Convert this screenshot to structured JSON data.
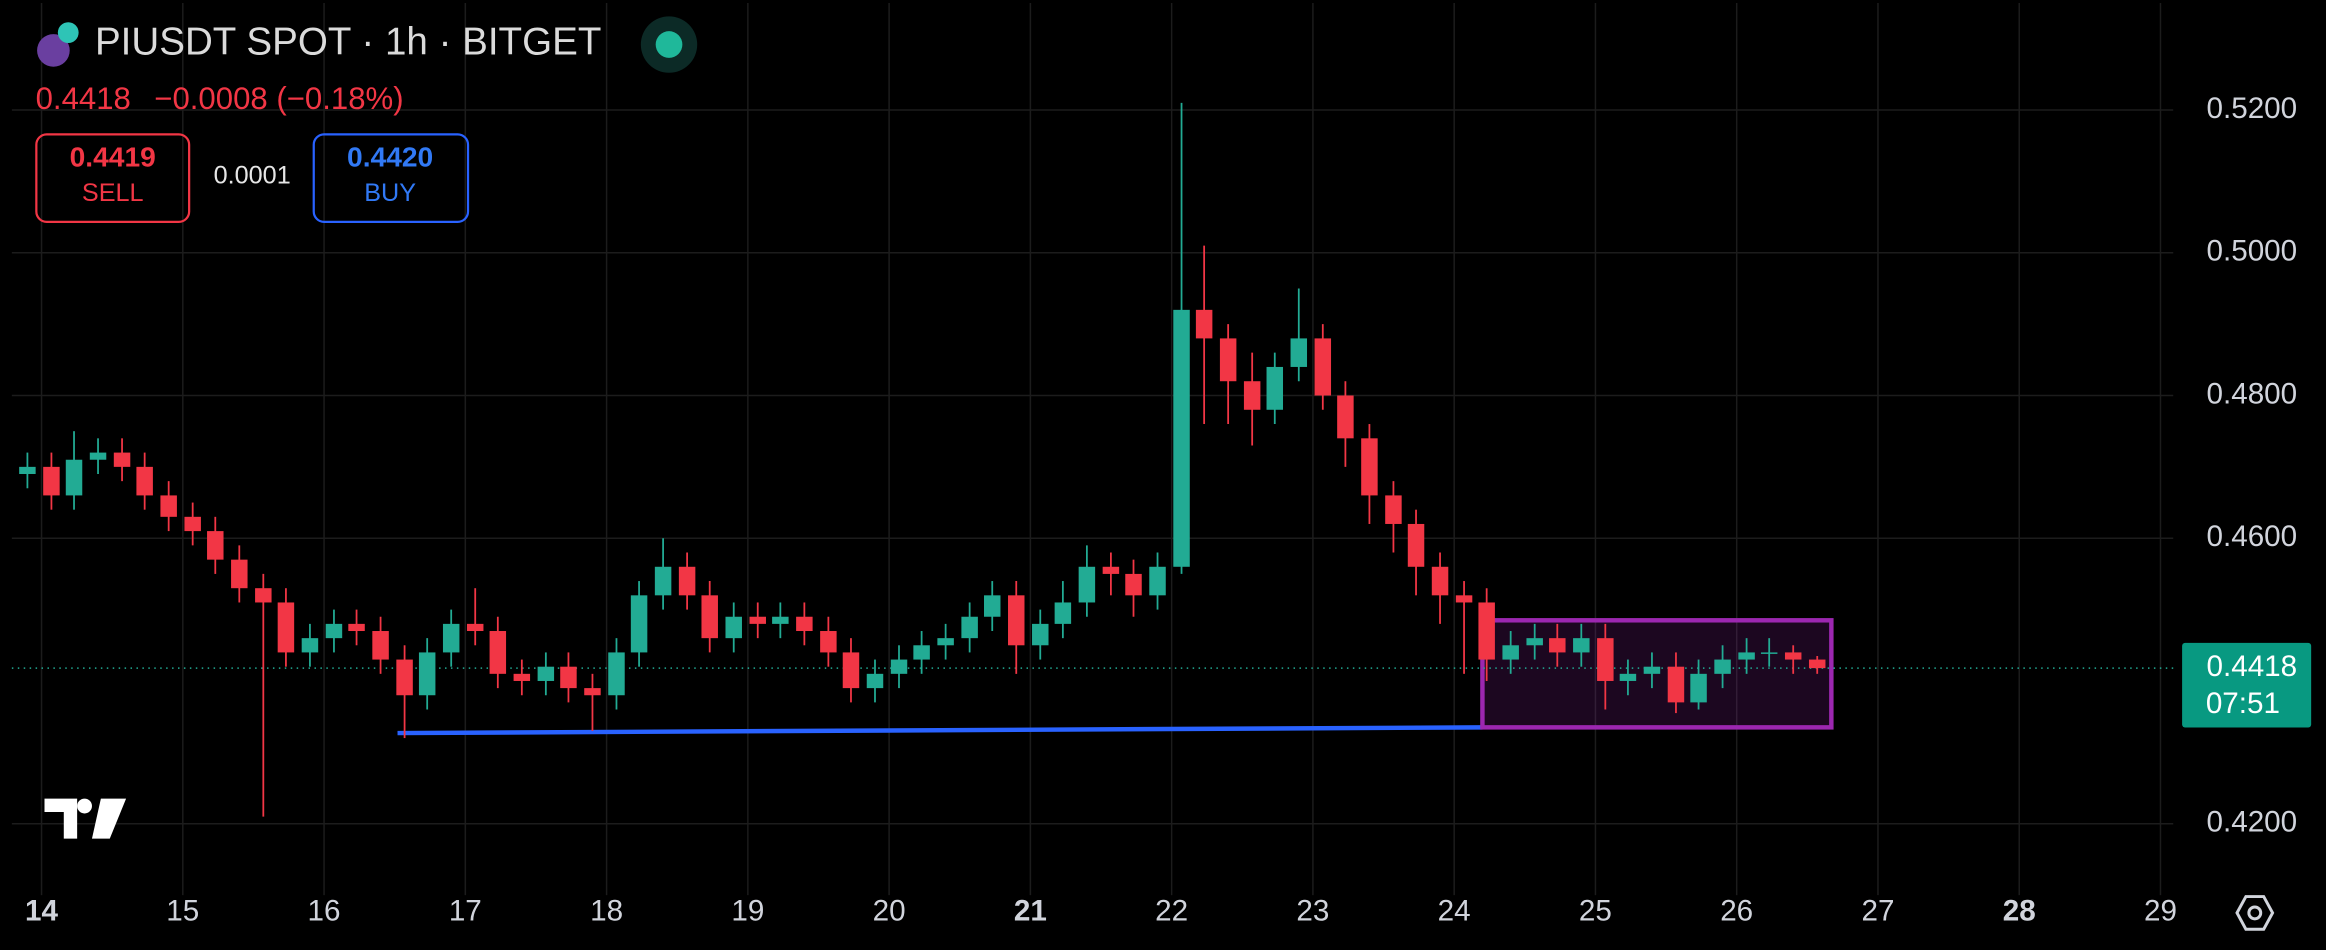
{
  "chart_data": {
    "type": "candlestick",
    "title": "PIUSDT SPOT · 1h · BITGET",
    "last_price": 0.4418,
    "change": "−0.0008 (−0.18%)",
    "sell": {
      "price": "0.4419",
      "label": "SELL"
    },
    "spread": "0.0001",
    "buy": {
      "price": "0.4420",
      "label": "BUY"
    },
    "countdown": "07:51",
    "up_color": "#22ab94",
    "down_color": "#f23645",
    "grid": true,
    "xlim": [
      13.79,
      29.09
    ],
    "xticks": [
      14,
      15,
      16,
      17,
      18,
      19,
      20,
      21,
      22,
      23,
      24,
      25,
      26,
      27,
      28,
      29
    ],
    "ylim": [
      0.41,
      0.535
    ],
    "yticks": [
      {
        "value": 0.42,
        "label": "0.4200"
      },
      {
        "value": 0.46,
        "label": "0.4600"
      },
      {
        "value": 0.48,
        "label": "0.4800"
      },
      {
        "value": 0.5,
        "label": "0.5000"
      },
      {
        "value": 0.52,
        "label": "0.5200"
      }
    ],
    "price_line": 0.4418,
    "trend_line": {
      "color": "#2962ff",
      "x": [
        16.52,
        24.2
      ],
      "y": [
        0.4327,
        0.4335
      ]
    },
    "range_box": {
      "color": "#9c27b0",
      "x": [
        24.2,
        26.67
      ],
      "y": [
        0.4335,
        0.4485
      ]
    },
    "x": [
      13.9,
      14.07,
      14.23,
      14.4,
      14.57,
      14.73,
      14.9,
      15.07,
      15.23,
      15.4,
      15.57,
      15.73,
      15.9,
      16.07,
      16.23,
      16.4,
      16.57,
      16.73,
      16.9,
      17.07,
      17.23,
      17.4,
      17.57,
      17.73,
      17.9,
      18.07,
      18.23,
      18.4,
      18.57,
      18.73,
      18.9,
      19.07,
      19.23,
      19.4,
      19.57,
      19.73,
      19.9,
      20.07,
      20.23,
      20.4,
      20.57,
      20.73,
      20.9,
      21.07,
      21.23,
      21.4,
      21.57,
      21.73,
      21.9,
      22.07,
      22.23,
      22.4,
      22.57,
      22.73,
      22.9,
      23.07,
      23.23,
      23.4,
      23.57,
      23.73,
      23.9,
      24.07,
      24.23,
      24.4,
      24.57,
      24.73,
      24.9,
      25.07,
      25.23,
      25.4,
      25.57,
      25.73,
      25.9,
      26.07,
      26.23,
      26.4,
      26.57
    ],
    "open": [
      0.469,
      0.47,
      0.466,
      0.471,
      0.472,
      0.47,
      0.466,
      0.463,
      0.461,
      0.457,
      0.453,
      0.451,
      0.444,
      0.446,
      0.448,
      0.447,
      0.443,
      0.438,
      0.444,
      0.448,
      0.447,
      0.441,
      0.44,
      0.442,
      0.439,
      0.438,
      0.444,
      0.452,
      0.456,
      0.452,
      0.446,
      0.449,
      0.448,
      0.449,
      0.447,
      0.444,
      0.439,
      0.441,
      0.443,
      0.445,
      0.446,
      0.449,
      0.452,
      0.445,
      0.448,
      0.451,
      0.456,
      0.455,
      0.452,
      0.456,
      0.492,
      0.488,
      0.482,
      0.478,
      0.484,
      0.488,
      0.48,
      0.474,
      0.466,
      0.462,
      0.456,
      0.452,
      0.451,
      0.443,
      0.445,
      0.446,
      0.444,
      0.446,
      0.44,
      0.441,
      0.442,
      0.437,
      0.441,
      0.443,
      0.444,
      0.444,
      0.443
    ],
    "high": [
      0.472,
      0.472,
      0.475,
      0.474,
      0.474,
      0.472,
      0.468,
      0.465,
      0.463,
      0.459,
      0.455,
      0.453,
      0.448,
      0.45,
      0.45,
      0.449,
      0.445,
      0.446,
      0.45,
      0.453,
      0.449,
      0.443,
      0.444,
      0.444,
      0.441,
      0.446,
      0.454,
      0.46,
      0.458,
      0.454,
      0.451,
      0.451,
      0.451,
      0.451,
      0.449,
      0.446,
      0.443,
      0.445,
      0.447,
      0.448,
      0.451,
      0.454,
      0.454,
      0.45,
      0.454,
      0.459,
      0.458,
      0.457,
      0.458,
      0.521,
      0.501,
      0.49,
      0.486,
      0.486,
      0.495,
      0.49,
      0.482,
      0.476,
      0.468,
      0.464,
      0.458,
      0.454,
      0.453,
      0.447,
      0.448,
      0.448,
      0.448,
      0.448,
      0.443,
      0.444,
      0.444,
      0.443,
      0.445,
      0.446,
      0.446,
      0.445,
      0.4435
    ],
    "low": [
      0.467,
      0.464,
      0.464,
      0.469,
      0.468,
      0.464,
      0.461,
      0.459,
      0.455,
      0.451,
      0.421,
      0.442,
      0.442,
      0.444,
      0.445,
      0.441,
      0.432,
      0.436,
      0.442,
      0.445,
      0.439,
      0.438,
      0.438,
      0.437,
      0.433,
      0.436,
      0.442,
      0.45,
      0.45,
      0.444,
      0.444,
      0.446,
      0.446,
      0.445,
      0.442,
      0.437,
      0.437,
      0.439,
      0.441,
      0.443,
      0.444,
      0.447,
      0.441,
      0.443,
      0.446,
      0.449,
      0.452,
      0.449,
      0.45,
      0.455,
      0.476,
      0.476,
      0.473,
      0.476,
      0.482,
      0.478,
      0.47,
      0.462,
      0.458,
      0.452,
      0.448,
      0.441,
      0.44,
      0.441,
      0.443,
      0.442,
      0.442,
      0.436,
      0.438,
      0.439,
      0.4355,
      0.436,
      0.439,
      0.441,
      0.442,
      0.441,
      0.441
    ],
    "close": [
      0.47,
      0.466,
      0.471,
      0.472,
      0.47,
      0.466,
      0.463,
      0.461,
      0.457,
      0.453,
      0.451,
      0.444,
      0.446,
      0.448,
      0.447,
      0.443,
      0.438,
      0.444,
      0.448,
      0.447,
      0.441,
      0.44,
      0.442,
      0.439,
      0.438,
      0.444,
      0.452,
      0.456,
      0.452,
      0.446,
      0.449,
      0.448,
      0.449,
      0.447,
      0.444,
      0.439,
      0.441,
      0.443,
      0.445,
      0.446,
      0.449,
      0.452,
      0.445,
      0.448,
      0.451,
      0.456,
      0.455,
      0.452,
      0.456,
      0.492,
      0.488,
      0.482,
      0.478,
      0.484,
      0.488,
      0.48,
      0.474,
      0.466,
      0.462,
      0.456,
      0.452,
      0.451,
      0.443,
      0.445,
      0.446,
      0.444,
      0.446,
      0.44,
      0.441,
      0.442,
      0.437,
      0.441,
      0.443,
      0.444,
      0.444,
      0.443,
      0.4418
    ]
  }
}
